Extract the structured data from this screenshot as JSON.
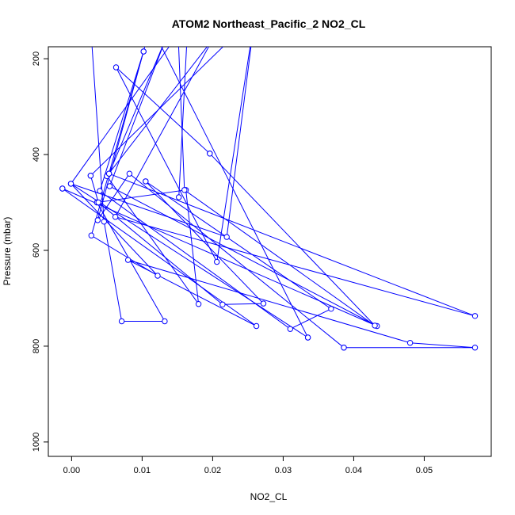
{
  "chart_data": {
    "type": "line",
    "title": "ATOM2 Northeast_Pacific_2 NO2_CL",
    "xlabel": "NO2_CL",
    "ylabel": "Pressure (mbar)",
    "xlim": [
      -0.0033,
      0.0595
    ],
    "ylim": [
      1030,
      175
    ],
    "y_reversed": true,
    "xticks": [
      0.0,
      0.01,
      0.02,
      0.03,
      0.04,
      0.05
    ],
    "xtick_labels": [
      "0.00",
      "0.01",
      "0.02",
      "0.03",
      "0.04",
      "0.05"
    ],
    "yticks": [
      200,
      400,
      600,
      800,
      1000
    ],
    "ytick_labels": [
      "200",
      "400",
      "600",
      "800",
      "1000"
    ],
    "grid": false,
    "legend": "none",
    "color": "#0000ff",
    "series": [
      {
        "points": [
          [
            0.0026,
            110
          ],
          [
            0.0046,
            540
          ],
          [
            0.0071,
            748
          ],
          [
            0.0132,
            748
          ],
          [
            0.0036,
            500
          ]
        ]
      },
      {
        "points": [
          [
            0.0036,
            500
          ],
          [
            0.0162,
            474
          ],
          [
            0.018,
            712
          ],
          [
            0.005,
            445
          ]
        ]
      },
      {
        "points": [
          [
            0.005,
            445
          ],
          [
            0.02,
            160
          ],
          [
            0.0062,
            530
          ],
          [
            0.0572,
            737
          ],
          [
            0.0053,
            440
          ]
        ]
      },
      {
        "points": [
          [
            0.0053,
            440
          ],
          [
            0.0133,
            160
          ],
          [
            0.0054,
            466
          ],
          [
            0.0433,
            758
          ],
          [
            -0.0013,
            471
          ]
        ]
      },
      {
        "points": [
          [
            -0.0013,
            471
          ],
          [
            0.0262,
            758
          ],
          [
            0.008,
            620
          ],
          [
            0.048,
            793
          ],
          [
            0.0572,
            803
          ],
          [
            0.0386,
            803
          ]
        ]
      },
      {
        "points": [
          [
            0.0386,
            803
          ],
          [
            0.0082,
            440
          ],
          [
            0.0037,
            537
          ],
          [
            0.0112,
            130
          ],
          [
            0.0335,
            782
          ]
        ]
      },
      {
        "points": [
          [
            0.0335,
            782
          ],
          [
            -0.0001,
            461
          ],
          [
            0.0122,
            653
          ],
          [
            0.0028,
            569
          ],
          [
            0.0102,
            185
          ]
        ]
      },
      {
        "points": [
          [
            0.0102,
            185
          ],
          [
            0.004,
            476
          ],
          [
            0.031,
            764
          ],
          [
            0.0368,
            722
          ],
          [
            0.0105,
            456
          ]
        ]
      },
      {
        "points": [
          [
            0.0105,
            456
          ],
          [
            0.0272,
            711
          ],
          [
            0.0214,
            713
          ],
          [
            0.0038,
            500
          ],
          [
            0.0027,
            444
          ]
        ]
      },
      {
        "points": [
          [
            0.0027,
            444
          ],
          [
            0.026,
            110
          ],
          [
            0.0206,
            624
          ],
          [
            0.0063,
            218
          ],
          [
            0.0196,
            398
          ]
        ]
      },
      {
        "points": [
          [
            0.0196,
            398
          ],
          [
            0.043,
            757
          ],
          [
            0.016,
            474
          ],
          [
            0.015,
            110
          ]
        ]
      },
      {
        "points": [
          [
            0.0152,
            489
          ],
          [
            0.0165,
            120
          ],
          [
            -0.0001,
            461
          ],
          [
            0.022,
            572
          ],
          [
            0.026,
            110
          ]
        ]
      }
    ]
  }
}
